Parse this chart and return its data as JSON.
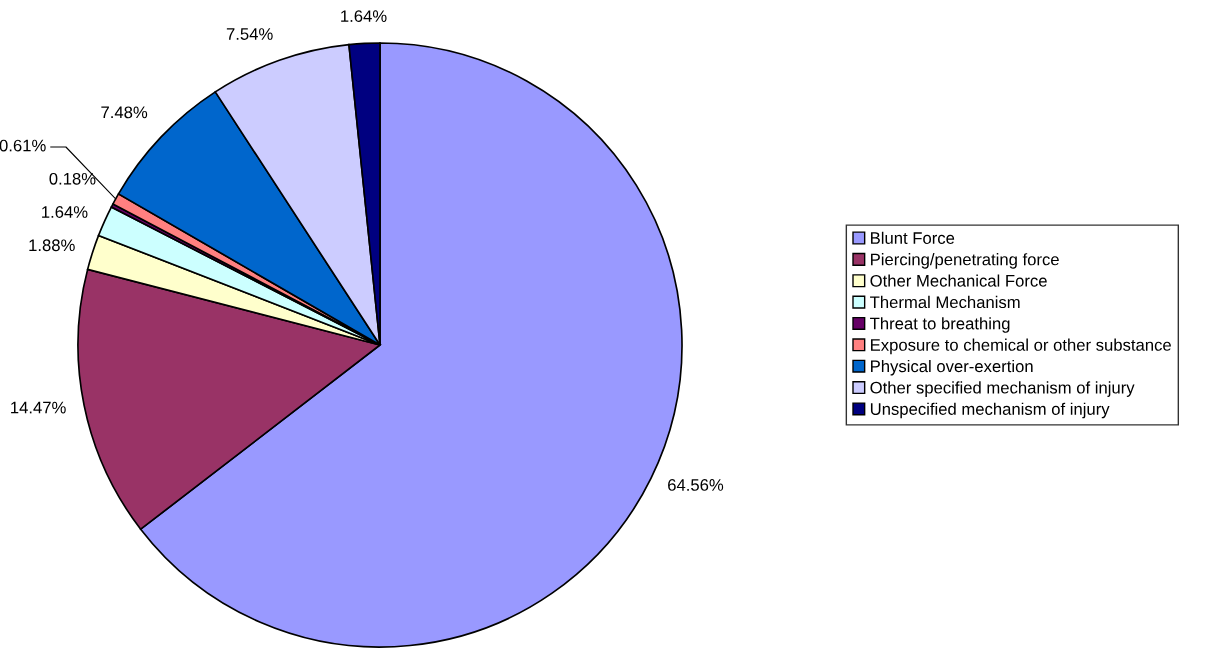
{
  "chart_data": {
    "type": "pie",
    "categories": [
      "Blunt Force",
      "Piercing/penetrating force",
      "Other Mechanical Force",
      "Thermal Mechanism",
      "Threat to breathing",
      "Exposure to chemical or other substance",
      "Physical over-exertion",
      "Other specified mechanism of injury",
      "Unspecified mechanism of injury"
    ],
    "values": [
      64.56,
      14.47,
      1.88,
      1.64,
      0.18,
      0.61,
      7.48,
      7.54,
      1.64
    ],
    "colors": [
      "#9999ff",
      "#993366",
      "#ffffcc",
      "#ccffff",
      "#660066",
      "#ff8080",
      "#0066cc",
      "#ccccff",
      "#000080"
    ],
    "value_labels": [
      "64.56%",
      "14.47%",
      "1.88%",
      "1.64%",
      "0.18%",
      "0.61%",
      "7.48%",
      "7.54%",
      "1.64%"
    ],
    "legend": "right"
  }
}
